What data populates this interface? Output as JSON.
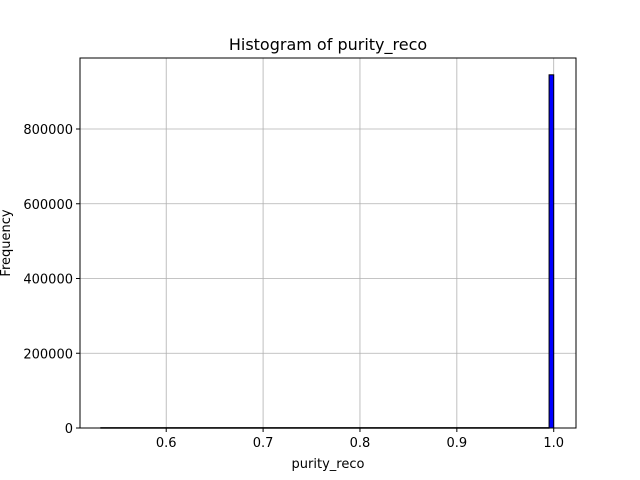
{
  "chart_data": {
    "type": "bar",
    "title": "Histogram of purity_reco",
    "xlabel": "purity_reco",
    "ylabel": "Frequency",
    "xlim": [
      0.511,
      1.023
    ],
    "ylim": [
      0,
      990000
    ],
    "xticks": [
      0.6,
      0.7,
      0.8,
      0.9,
      1.0
    ],
    "xtick_labels": [
      "0.6",
      "0.7",
      "0.8",
      "0.9",
      "1.0"
    ],
    "yticks": [
      0,
      200000,
      400000,
      600000,
      800000
    ],
    "ytick_labels": [
      "0",
      "200000",
      "400000",
      "600000",
      "800000"
    ],
    "grid": true,
    "bin_edges": [
      0.5325,
      0.9952,
      1.0
    ],
    "values": [
      1000,
      945000
    ],
    "colors": {
      "bar_fill": "#0000ff",
      "bar_edge": "#000000",
      "grid": "#b0b0b0",
      "axes": "#000000"
    }
  }
}
